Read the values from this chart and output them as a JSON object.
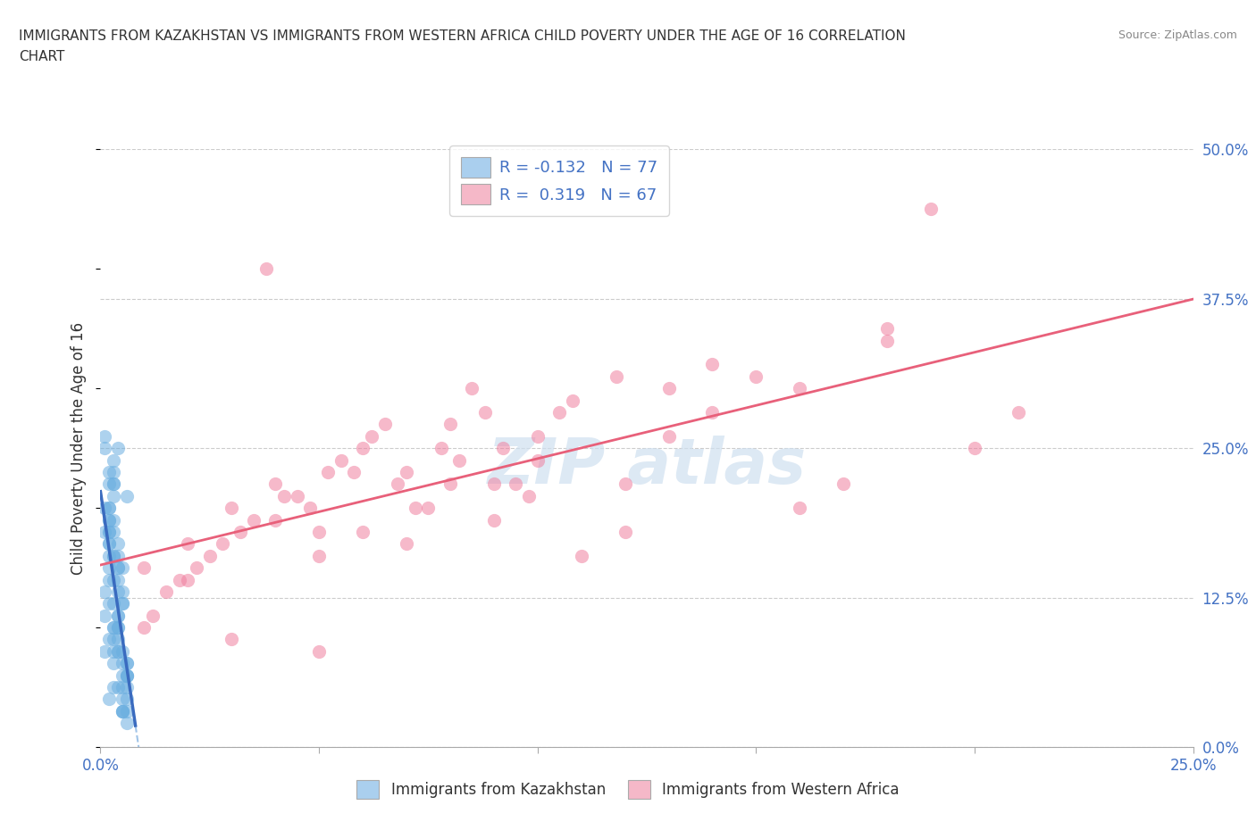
{
  "title_line1": "IMMIGRANTS FROM KAZAKHSTAN VS IMMIGRANTS FROM WESTERN AFRICA CHILD POVERTY UNDER THE AGE OF 16 CORRELATION",
  "title_line2": "CHART",
  "source": "Source: ZipAtlas.com",
  "ylabel": "Child Poverty Under the Age of 16",
  "x_label_kazakhstan": "Immigrants from Kazakhstan",
  "x_label_western_africa": "Immigrants from Western Africa",
  "xlim": [
    0.0,
    0.25
  ],
  "ylim": [
    0.0,
    0.5
  ],
  "xticks": [
    0.0,
    0.05,
    0.1,
    0.15,
    0.2,
    0.25
  ],
  "xtick_labels_show": [
    "0.0%",
    "",
    "",
    "",
    "",
    "25.0%"
  ],
  "ytick_labels_right": [
    "0.0%",
    "12.5%",
    "25.0%",
    "37.5%",
    "50.0%"
  ],
  "yticks": [
    0.0,
    0.125,
    0.25,
    0.375,
    0.5
  ],
  "R_kazakhstan": -0.132,
  "N_kazakhstan": 77,
  "R_western_africa": 0.319,
  "N_western_africa": 67,
  "legend_color_kazakhstan": "#aacfee",
  "legend_color_western_africa": "#f5b8c8",
  "scatter_color_kazakhstan": "#6aaee0",
  "scatter_color_western_africa": "#f080a0",
  "trend_color_kazakhstan": "#3a6bbf",
  "trend_color_western_africa": "#e8607a",
  "trend_dash_color": "#a0c4e8",
  "watermark_color": "#cfe0f0",
  "background_color": "#ffffff",
  "grid_color": "#cccccc",
  "kaz_x": [
    0.002,
    0.003,
    0.001,
    0.004,
    0.003,
    0.005,
    0.002,
    0.004,
    0.006,
    0.003,
    0.002,
    0.005,
    0.004,
    0.003,
    0.006,
    0.002,
    0.001,
    0.003,
    0.005,
    0.004,
    0.002,
    0.006,
    0.003,
    0.004,
    0.002,
    0.005,
    0.003,
    0.001,
    0.004,
    0.006,
    0.002,
    0.003,
    0.005,
    0.004,
    0.002,
    0.003,
    0.006,
    0.004,
    0.002,
    0.005,
    0.003,
    0.001,
    0.004,
    0.006,
    0.002,
    0.003,
    0.005,
    0.004,
    0.001,
    0.003,
    0.005,
    0.002,
    0.004,
    0.006,
    0.003,
    0.002,
    0.005,
    0.001,
    0.004,
    0.003,
    0.006,
    0.002,
    0.004,
    0.005,
    0.003,
    0.001,
    0.006,
    0.004,
    0.002,
    0.005,
    0.003,
    0.004,
    0.002,
    0.006,
    0.003,
    0.005,
    0.002
  ],
  "kaz_y": [
    0.2,
    0.18,
    0.26,
    0.05,
    0.12,
    0.08,
    0.22,
    0.15,
    0.07,
    0.1,
    0.17,
    0.03,
    0.25,
    0.14,
    0.06,
    0.19,
    0.11,
    0.09,
    0.13,
    0.16,
    0.04,
    0.21,
    0.08,
    0.17,
    0.12,
    0.05,
    0.24,
    0.18,
    0.1,
    0.07,
    0.15,
    0.22,
    0.03,
    0.14,
    0.09,
    0.19,
    0.06,
    0.11,
    0.16,
    0.04,
    0.23,
    0.08,
    0.13,
    0.02,
    0.18,
    0.07,
    0.15,
    0.1,
    0.2,
    0.05,
    0.12,
    0.17,
    0.08,
    0.03,
    0.22,
    0.14,
    0.06,
    0.25,
    0.09,
    0.16,
    0.04,
    0.19,
    0.11,
    0.07,
    0.21,
    0.13,
    0.05,
    0.15,
    0.18,
    0.03,
    0.1,
    0.08,
    0.23,
    0.06,
    0.16,
    0.12,
    0.2
  ],
  "waf_x": [
    0.01,
    0.02,
    0.03,
    0.04,
    0.05,
    0.06,
    0.07,
    0.08,
    0.09,
    0.1,
    0.015,
    0.025,
    0.035,
    0.045,
    0.055,
    0.065,
    0.075,
    0.085,
    0.095,
    0.105,
    0.012,
    0.022,
    0.032,
    0.042,
    0.052,
    0.062,
    0.072,
    0.082,
    0.092,
    0.018,
    0.028,
    0.038,
    0.048,
    0.058,
    0.068,
    0.078,
    0.088,
    0.098,
    0.108,
    0.118,
    0.01,
    0.02,
    0.03,
    0.04,
    0.05,
    0.06,
    0.07,
    0.08,
    0.09,
    0.1,
    0.11,
    0.12,
    0.13,
    0.14,
    0.05,
    0.12,
    0.14,
    0.16,
    0.18,
    0.2,
    0.13,
    0.15,
    0.17,
    0.19,
    0.21,
    0.16,
    0.18
  ],
  "waf_y": [
    0.15,
    0.17,
    0.2,
    0.22,
    0.18,
    0.25,
    0.23,
    0.27,
    0.22,
    0.26,
    0.13,
    0.16,
    0.19,
    0.21,
    0.24,
    0.27,
    0.2,
    0.3,
    0.22,
    0.28,
    0.11,
    0.15,
    0.18,
    0.21,
    0.23,
    0.26,
    0.2,
    0.24,
    0.25,
    0.14,
    0.17,
    0.4,
    0.2,
    0.23,
    0.22,
    0.25,
    0.28,
    0.21,
    0.29,
    0.31,
    0.1,
    0.14,
    0.09,
    0.19,
    0.16,
    0.18,
    0.17,
    0.22,
    0.19,
    0.24,
    0.16,
    0.22,
    0.3,
    0.28,
    0.08,
    0.18,
    0.32,
    0.2,
    0.35,
    0.25,
    0.26,
    0.31,
    0.22,
    0.45,
    0.28,
    0.3,
    0.34
  ]
}
